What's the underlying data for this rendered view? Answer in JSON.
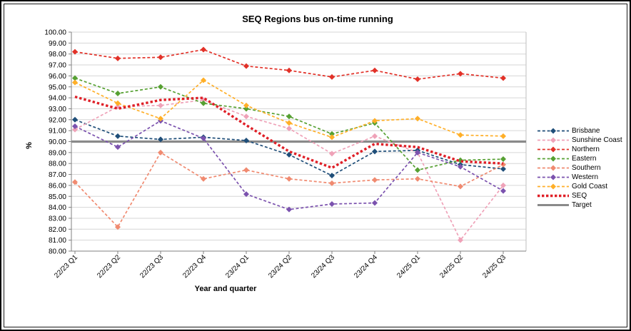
{
  "title": "SEQ Regions bus on-time running",
  "axes": {
    "y_title": "%",
    "x_title": "Year and quarter",
    "y_min": 80,
    "y_max": 100,
    "y_step": 1,
    "y_label_decimals": 2
  },
  "chart_data": {
    "type": "line",
    "title": "SEQ Regions bus on-time running",
    "xlabel": "Year and quarter",
    "ylabel": "%",
    "ylim": [
      80,
      100
    ],
    "grid": true,
    "legend_position": "right",
    "categories": [
      "22/23 Q1",
      "22/23 Q2",
      "22/23 Q3",
      "22/23 Q4",
      "23/24 Q1",
      "23/24 Q2",
      "23/24 Q3",
      "23/24 Q4",
      "24/25 Q1",
      "24/25 Q2",
      "24/25 Q3"
    ],
    "series": [
      {
        "name": "Brisbane",
        "color": "#1F4E79",
        "style": "dashed-diamond",
        "values": [
          92.0,
          90.5,
          90.2,
          90.4,
          90.1,
          88.8,
          86.9,
          89.1,
          89.2,
          87.9,
          87.5
        ]
      },
      {
        "name": "Sunshine Coast",
        "color": "#EFA2B8",
        "style": "dashed-diamond",
        "values": [
          91.1,
          93.2,
          93.3,
          93.8,
          92.3,
          91.2,
          88.9,
          90.5,
          89.0,
          81.0,
          86.0
        ]
      },
      {
        "name": "Northern",
        "color": "#E23128",
        "style": "dashed-diamond",
        "values": [
          98.2,
          97.6,
          97.7,
          98.4,
          96.9,
          96.5,
          95.9,
          96.5,
          95.7,
          96.2,
          95.8
        ]
      },
      {
        "name": "Eastern",
        "color": "#56A032",
        "style": "dashed-diamond",
        "values": [
          95.8,
          94.4,
          95.0,
          93.5,
          93.0,
          92.3,
          90.7,
          91.7,
          87.4,
          88.3,
          88.4
        ]
      },
      {
        "name": "Southern",
        "color": "#F08A70",
        "style": "dashed-diamond",
        "values": [
          86.3,
          82.2,
          89.0,
          86.6,
          87.4,
          86.6,
          86.2,
          86.5,
          86.6,
          85.9,
          87.9
        ]
      },
      {
        "name": "Western",
        "color": "#7B52AE",
        "style": "dashed-diamond",
        "values": [
          91.4,
          89.5,
          91.9,
          90.3,
          85.2,
          83.8,
          84.3,
          84.4,
          89.0,
          87.7,
          85.5
        ]
      },
      {
        "name": "Gold Coast",
        "color": "#FFAF28",
        "style": "dashed-diamond",
        "values": [
          95.4,
          93.5,
          92.1,
          95.6,
          93.3,
          91.7,
          90.4,
          91.9,
          92.1,
          90.6,
          90.5
        ]
      },
      {
        "name": "SEQ",
        "color": "#DF1F27",
        "style": "bold-dotted",
        "values": [
          94.1,
          93.0,
          93.8,
          94.0,
          91.5,
          89.1,
          87.6,
          89.8,
          89.5,
          88.2,
          88.0
        ]
      },
      {
        "name": "Target",
        "color": "#8A8A8A",
        "style": "solid",
        "values": [
          90,
          90,
          90,
          90,
          90,
          90,
          90,
          90,
          90,
          90,
          90
        ]
      }
    ]
  }
}
